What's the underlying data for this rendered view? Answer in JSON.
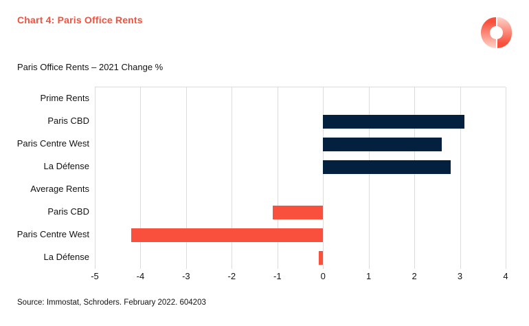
{
  "page": {
    "heading": "Chart 4: Paris Office Rents",
    "source": "Source: Immostat, Schroders. February 2022. 604203",
    "logo": "brand-ring-logo"
  },
  "colors": {
    "accent_coral": "#F8503C",
    "coral_fade": "#FDD3C9",
    "navy": "#03203F",
    "gridline": "#DCDCDC",
    "text": "#121212"
  },
  "chart_data": {
    "type": "bar",
    "orientation": "horizontal",
    "title": "Paris Office Rents – 2021 Change %",
    "xlabel": "",
    "ylabel": "",
    "xlim": [
      -5,
      4
    ],
    "xticks": [
      -5,
      -4,
      -3,
      -2,
      -1,
      0,
      1,
      2,
      3,
      4
    ],
    "grid": true,
    "legend": "none",
    "rows": [
      {
        "label": "Prime Rents",
        "value": null,
        "role": "section-header"
      },
      {
        "label": "Paris CBD",
        "value": 3.1,
        "color": "navy"
      },
      {
        "label": "Paris Centre West",
        "value": 2.6,
        "color": "navy"
      },
      {
        "label": "La Défense",
        "value": 2.8,
        "color": "navy"
      },
      {
        "label": "Average Rents",
        "value": null,
        "role": "section-header"
      },
      {
        "label": "Paris CBD",
        "value": -1.1,
        "color": "coral"
      },
      {
        "label": "Paris Centre West",
        "value": -4.2,
        "color": "coral"
      },
      {
        "label": "La Défense",
        "value": -0.1,
        "color": "coral"
      }
    ]
  }
}
